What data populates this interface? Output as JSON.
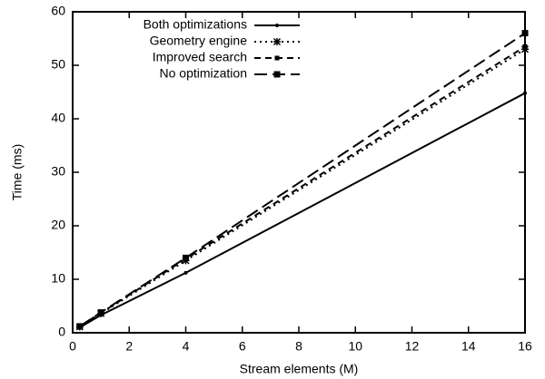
{
  "chart_data": {
    "type": "line",
    "x_label": "Stream elements (M)",
    "y_label": "Time (ms)",
    "xlim": [
      0,
      16
    ],
    "xticks": [
      0,
      2,
      4,
      6,
      8,
      10,
      12,
      14,
      16
    ],
    "ylim": [
      0,
      60
    ],
    "yticks": [
      0,
      10,
      20,
      30,
      40,
      50,
      60
    ],
    "legend": "top-left",
    "x": [
      0.25,
      1,
      4,
      16
    ],
    "series": [
      {
        "name": "Both optimizations",
        "color": "#000000",
        "dash": "solid",
        "marker": "dot",
        "values": [
          1.0,
          3.3,
          11.2,
          44.8
        ]
      },
      {
        "name": "Geometry engine",
        "color": "#000000",
        "dash": "dotted",
        "marker": "star",
        "values": [
          1.1,
          3.6,
          13.5,
          53.0
        ]
      },
      {
        "name": "Improved search",
        "color": "#000000",
        "dash": "dashed",
        "marker": "small-square",
        "values": [
          1.2,
          3.7,
          13.8,
          53.5
        ]
      },
      {
        "name": "No optimization",
        "color": "#000000",
        "dash": "long-dashed",
        "marker": "square",
        "values": [
          1.2,
          3.8,
          14.0,
          56.0
        ]
      }
    ]
  }
}
